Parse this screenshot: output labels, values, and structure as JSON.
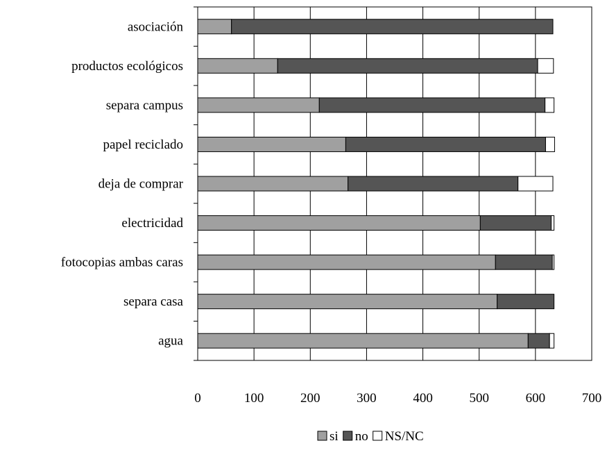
{
  "chart_data": {
    "type": "bar",
    "orientation": "horizontal",
    "stacked": true,
    "categories": [
      "asociación",
      "productos ecológicos",
      "separa campus",
      "papel reciclado",
      "deja de comprar",
      "electricidad",
      "fotocopias ambas caras",
      "separa casa",
      "agua"
    ],
    "series": [
      {
        "name": "si",
        "values": [
          60,
          142,
          216,
          263,
          267,
          502,
          529,
          532,
          587
        ]
      },
      {
        "name": "no",
        "values": [
          571,
          462,
          401,
          355,
          302,
          126,
          101,
          101,
          38
        ]
      },
      {
        "name": "NS/NC",
        "values": [
          0,
          28,
          16,
          16,
          62,
          5,
          3,
          0,
          8
        ]
      }
    ],
    "colors": {
      "si": "#a0a0a0",
      "no": "#555555",
      "NS/NC": "#ffffff"
    },
    "xlim": [
      0,
      700
    ],
    "xticks": [
      0,
      100,
      200,
      300,
      400,
      500,
      600,
      700
    ],
    "grid": "vertical",
    "legend": "bottom"
  }
}
